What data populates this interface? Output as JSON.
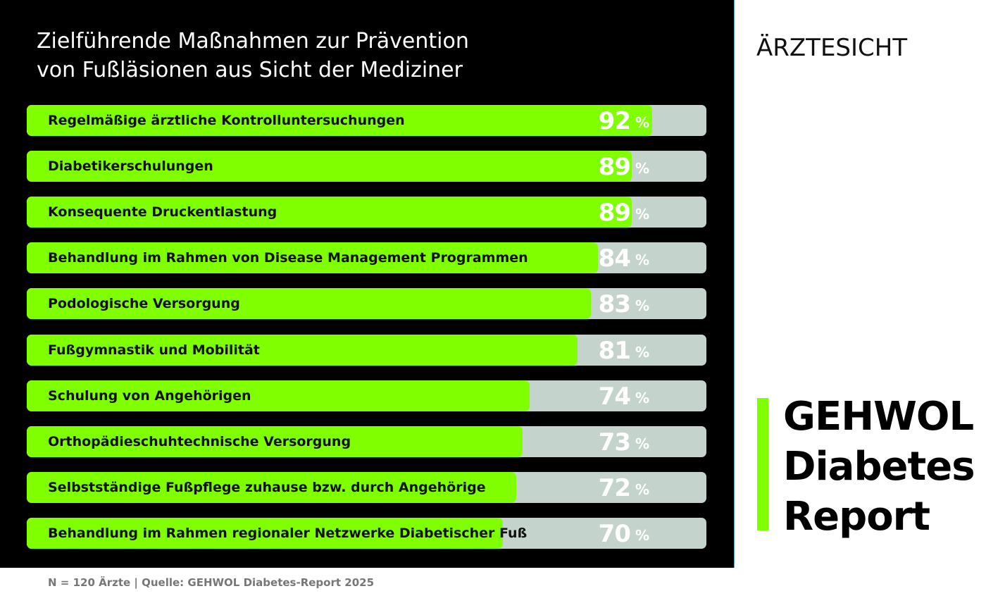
{
  "colors": {
    "background": "#000000",
    "bar_fill": "#80ff00",
    "bar_track": "#c4d3cb",
    "value_text": "#ffffff"
  },
  "side": {
    "heading": "ÄRZTESICHT",
    "logo_lines": [
      "GEHWOL",
      "Diabetes",
      "Report"
    ]
  },
  "footer": "N = 120 Ärzte | Quelle: GEHWOL Diabetes-Report 2025",
  "chart_data": {
    "type": "bar",
    "orientation": "horizontal",
    "title_lines": [
      "Zielführende Maßnahmen zur Prävention",
      "von Fußläsionen aus Sicht der Mediziner"
    ],
    "unit": "%",
    "xlim": [
      0,
      100
    ],
    "grid": false,
    "categories": [
      "Regelmäßige ärztliche Kontrolluntersuchungen",
      "Diabetikerschulungen",
      "Konsequente Druckentlastung",
      "Behandlung im Rahmen von Disease Management Programmen",
      "Podologische Versorgung",
      "Fußgymnastik und Mobilität",
      "Schulung von Angehörigen",
      "Orthopädieschuhtechnische Versorgung",
      "Selbstständige Fußpflege zuhause bzw. durch Angehörige",
      "Behandlung im Rahmen regionaler Netzwerke Diabetischer Fuß"
    ],
    "values": [
      92,
      89,
      89,
      84,
      83,
      81,
      74,
      73,
      72,
      70
    ]
  }
}
